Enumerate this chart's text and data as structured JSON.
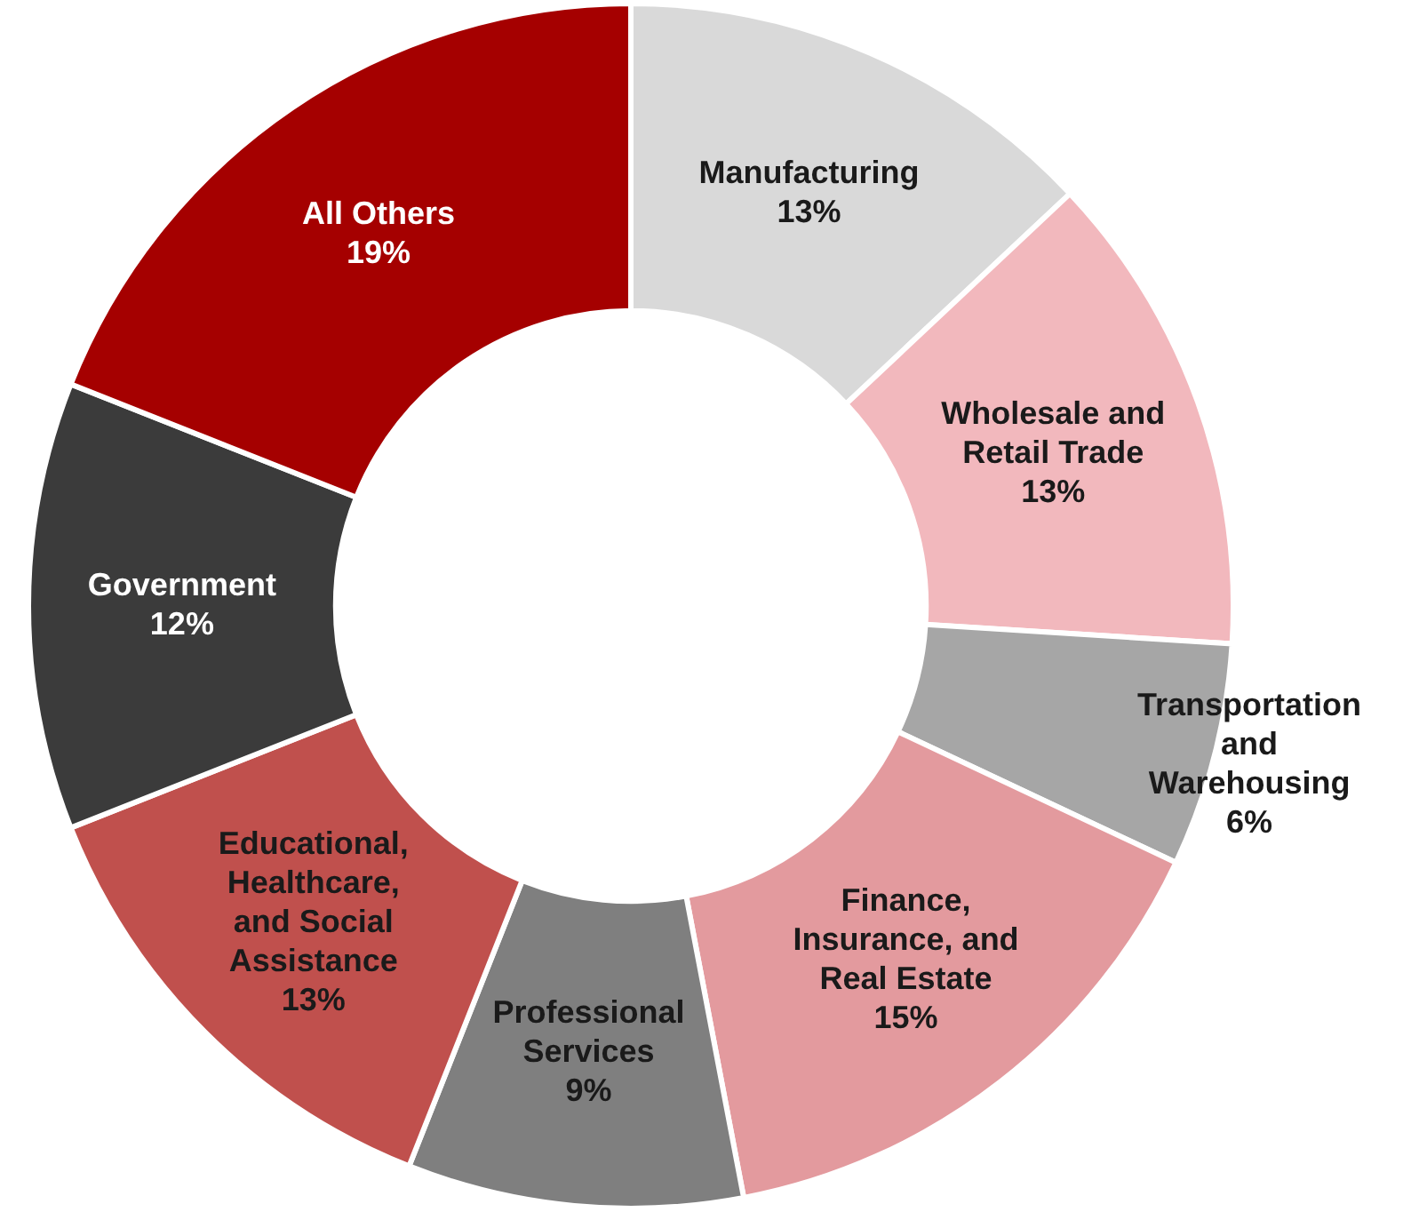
{
  "chart_data": {
    "type": "donut",
    "categories": [
      "Manufacturing",
      "Wholesale and\nRetail Trade",
      "Transportation\nand\nWarehousing",
      "Finance,\nInsurance, and\nReal Estate",
      "Professional\nServices",
      "Educational,\nHealthcare,\nand Social\nAssistance",
      "Government",
      "All Others"
    ],
    "values": [
      13,
      13,
      6,
      15,
      9,
      13,
      12,
      19
    ],
    "colors": [
      "#d9d9d9",
      "#f2b8bd",
      "#a6a6a6",
      "#e39a9e",
      "#7f7f7f",
      "#c0504d",
      "#3b3b3b",
      "#a50000"
    ],
    "value_labels": [
      "13%",
      "13%",
      "6%",
      "15%",
      "9%",
      "13%",
      "12%",
      "19%"
    ]
  }
}
